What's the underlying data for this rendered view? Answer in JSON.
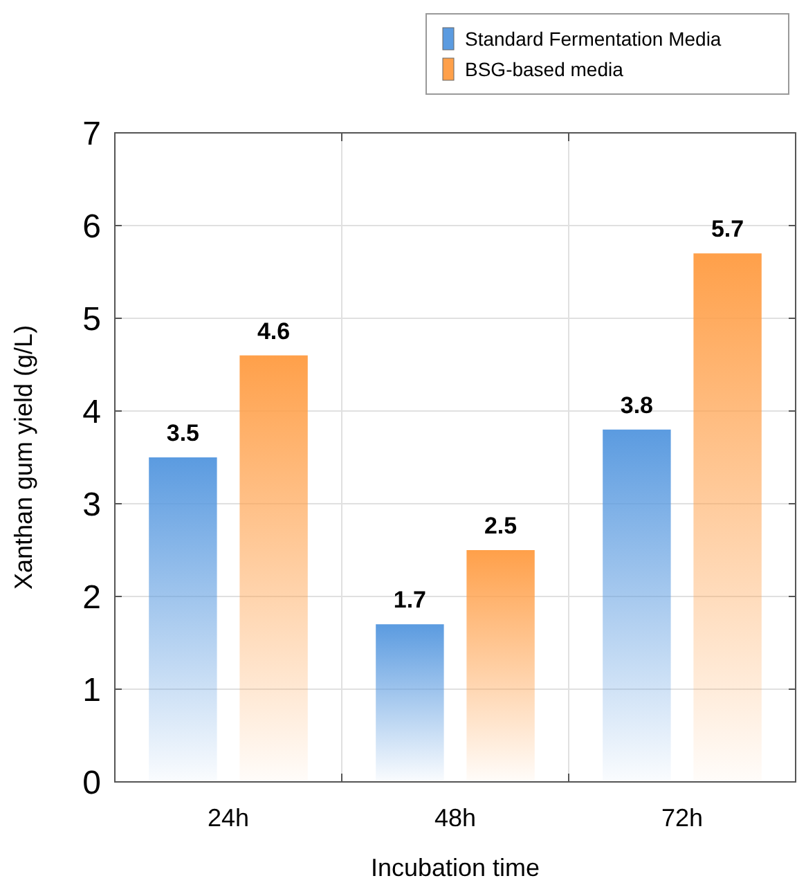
{
  "chart_data": {
    "type": "bar",
    "xlabel": "Incubation time",
    "ylabel": "Xanthan gum yield (g/L)",
    "categories": [
      "24h",
      "48h",
      "72h"
    ],
    "series": [
      {
        "name": "Standard Fermentation Media",
        "color": "#5b9be0",
        "values": [
          3.5,
          1.7,
          3.8
        ]
      },
      {
        "name": "BSG-based media",
        "color": "#ffa04a",
        "values": [
          4.6,
          2.5,
          5.7
        ]
      }
    ],
    "ylim": [
      0,
      7
    ],
    "yticks": [
      0,
      1,
      2,
      3,
      4,
      5,
      6,
      7
    ],
    "grid": true,
    "legend": "top right",
    "data_labels": true
  }
}
